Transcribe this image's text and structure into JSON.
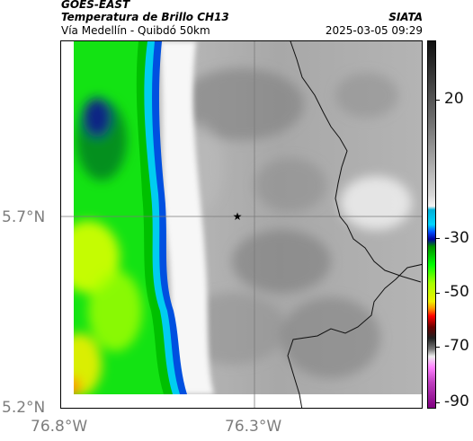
{
  "header": {
    "title": "GOES-EAST",
    "subtitle": "Temperatura de Brillo CH13",
    "location": "Vía Medellín - Quibdó 50km",
    "organization": "SIATA",
    "datetime": "2025-03-05 09:29"
  },
  "axes": {
    "y_labels": [
      "5.7°N",
      "5.2°N"
    ],
    "x_labels": [
      "76.8°W",
      "76.3°W"
    ]
  },
  "colorbar": {
    "labels": [
      "20",
      "-30",
      "-50",
      "-70",
      "-90"
    ]
  },
  "marker": {
    "symbol": "★"
  }
}
